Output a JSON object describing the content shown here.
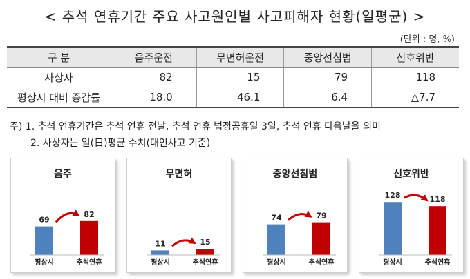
{
  "title": "< 추석 연휴기간 주요 사고원인별 사고피해자 현황(일평균) >",
  "unit": "(단위 : 명, %)",
  "table": {
    "headers": [
      "구  분",
      "음주운전",
      "무면허운전",
      "중앙선침범",
      "신호위반"
    ],
    "rows": [
      {
        "label": "사상자",
        "values": [
          "82",
          "15",
          "79",
          "118"
        ]
      },
      {
        "label": "평상시 대비 증감률",
        "values": [
          "18.0",
          "46.1",
          "6.4",
          "△7.7"
        ]
      }
    ]
  },
  "notes": [
    "주) 1. 추석 연휴기간은 추석 연휴 전날, 추석 연휴 법정공휴일 3일, 추석 연휴 다음날을 의미",
    "2. 사상자는 일(日)평균 수치(대인사고 기준)"
  ],
  "colors": {
    "normal": "#4f81bd",
    "holiday": "#c00000",
    "arrow": "#c00000"
  },
  "chart_data": [
    {
      "type": "bar",
      "title": "음주",
      "categories": [
        "평상시",
        "추석연휴"
      ],
      "values": [
        69,
        82
      ]
    },
    {
      "type": "bar",
      "title": "무면허",
      "categories": [
        "평상시",
        "추석연휴"
      ],
      "values": [
        11,
        15
      ]
    },
    {
      "type": "bar",
      "title": "중앙선침범",
      "categories": [
        "평상시",
        "추석연휴"
      ],
      "values": [
        74,
        79
      ]
    },
    {
      "type": "bar",
      "title": "신호위반",
      "categories": [
        "평상시",
        "추석연휴"
      ],
      "values": [
        128,
        118
      ]
    }
  ]
}
